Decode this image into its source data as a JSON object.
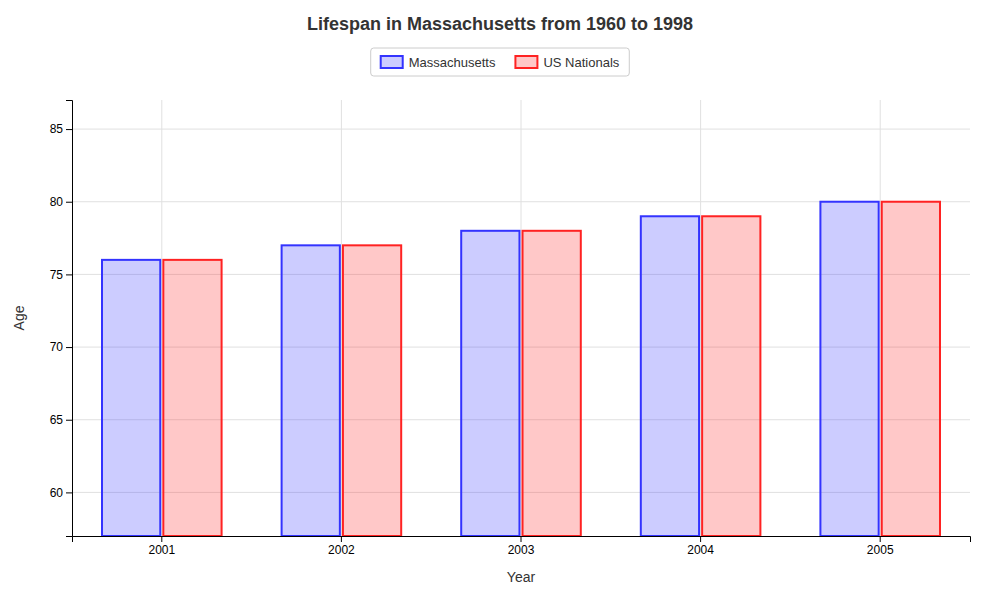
{
  "chart_data": {
    "type": "bar",
    "title": "Lifespan in Massachusetts from 1960 to 1998",
    "xlabel": "Year",
    "ylabel": "Age",
    "categories": [
      "2001",
      "2002",
      "2003",
      "2004",
      "2005"
    ],
    "series": [
      {
        "name": "Massachusetts",
        "color": "#3333ff",
        "values": [
          76,
          77,
          78,
          79,
          80
        ]
      },
      {
        "name": "US Nationals",
        "color": "#ff2222",
        "values": [
          76,
          77,
          78,
          79,
          80
        ]
      }
    ],
    "ylim": [
      57,
      87
    ],
    "yticks": [
      60,
      65,
      70,
      75,
      80,
      85
    ],
    "grid": true,
    "legend": "top"
  }
}
